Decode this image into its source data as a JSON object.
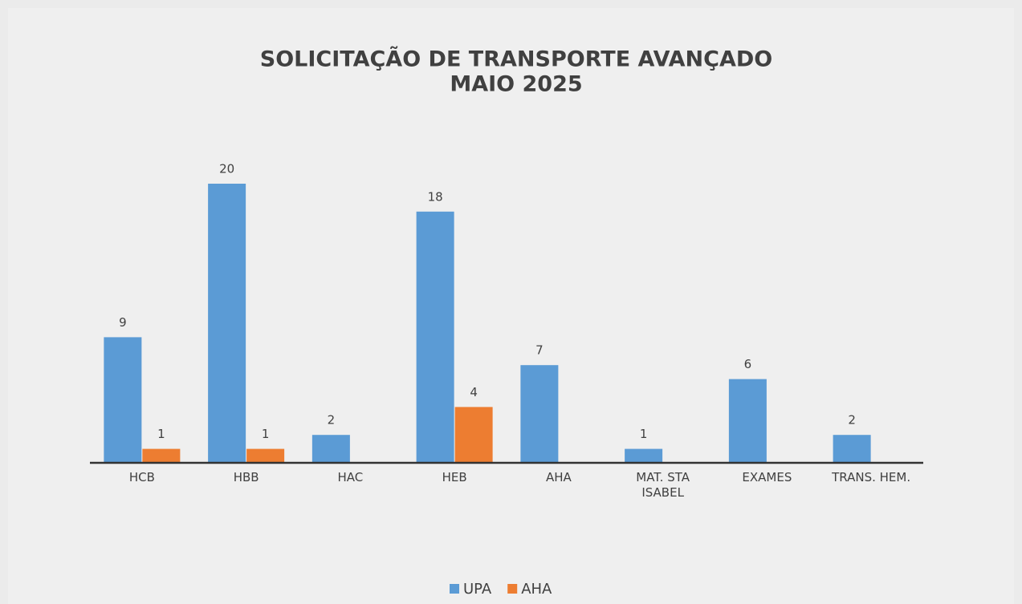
{
  "chart_data": {
    "type": "bar",
    "title": "SOLICITAÇÃO DE TRANSPORTE AVANÇADO",
    "subtitle": "MAIO 2025",
    "categories": [
      "HCB",
      "HBB",
      "HAC",
      "HEB",
      "AHA",
      "MAT. STA ISABEL",
      "EXAMES",
      "TRANS. HEM."
    ],
    "series": [
      {
        "name": "UPA",
        "color": "#5b9bd5",
        "values": [
          9,
          20,
          2,
          18,
          7,
          1,
          6,
          2
        ]
      },
      {
        "name": "AHA",
        "color": "#ed7d31",
        "values": [
          1,
          1,
          null,
          4,
          null,
          null,
          null,
          null
        ]
      }
    ],
    "legend": "bottom"
  }
}
